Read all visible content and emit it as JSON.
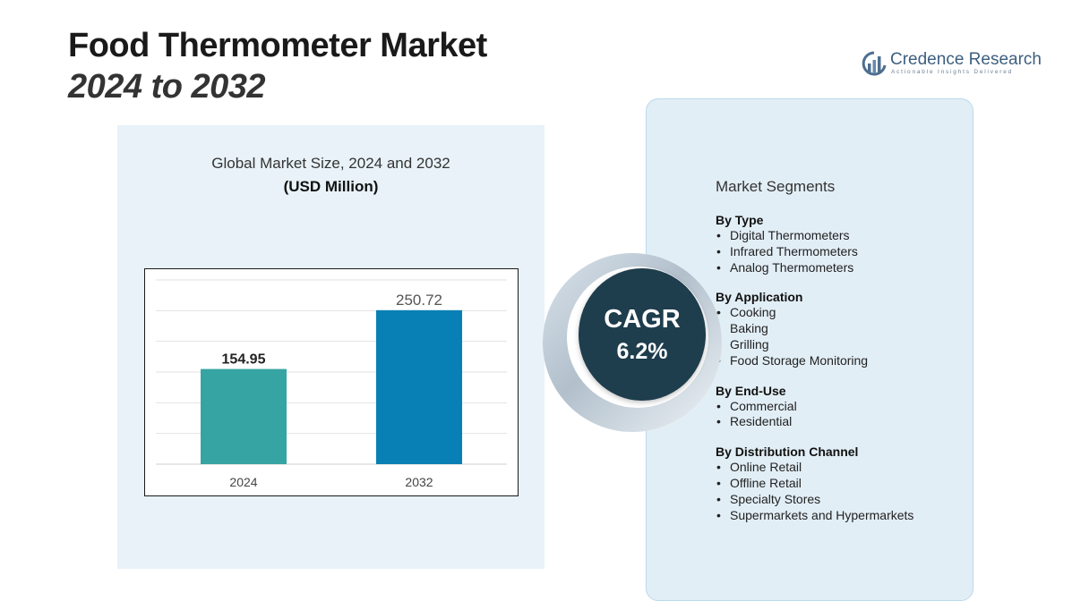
{
  "title": "Food Thermometer Market",
  "subtitle": "2024 to 2032",
  "logo": {
    "name": "Credence Research",
    "tagline": "Actionable Insights Delivered"
  },
  "chart_data": {
    "type": "bar",
    "title": "Global Market Size, 2024 and 2032",
    "unit_label": "(USD Million)",
    "categories": [
      "2024",
      "2032"
    ],
    "values": [
      154.95,
      250.72
    ],
    "value_labels": [
      "154.95",
      "250.72"
    ],
    "colors": [
      "#35a4a3",
      "#0880b5"
    ],
    "ylim": [
      0,
      300
    ],
    "grid": true,
    "legend": "none"
  },
  "cagr": {
    "label": "CAGR",
    "value": "6.2%"
  },
  "segments": {
    "heading": "Market Segments",
    "groups": [
      {
        "title": "By Type",
        "items": [
          "Digital Thermometers",
          "Infrared Thermometers",
          "Analog Thermometers"
        ]
      },
      {
        "title": "By Application",
        "items": [
          "Cooking",
          "Baking",
          "Grilling",
          "Food Storage Monitoring"
        ]
      },
      {
        "title": "By End-Use",
        "items": [
          "Commercial",
          "Residential"
        ]
      },
      {
        "title": "By Distribution Channel",
        "items": [
          "Online Retail",
          "Offline Retail",
          "Specialty Stores",
          "Supermarkets and Hypermarkets"
        ]
      }
    ]
  }
}
